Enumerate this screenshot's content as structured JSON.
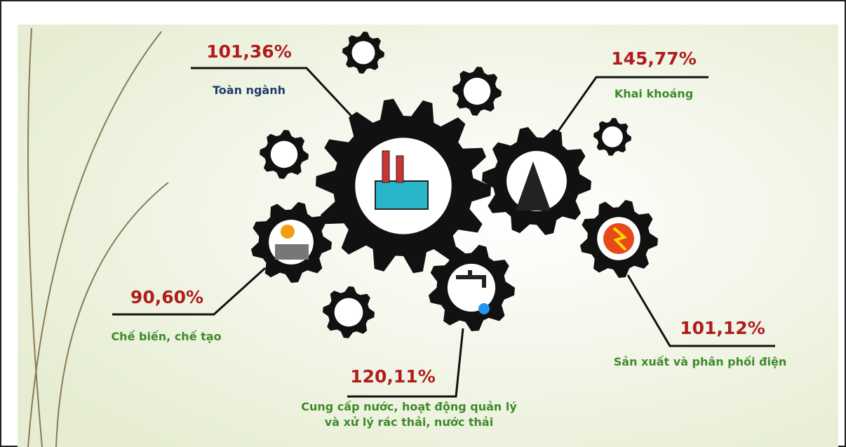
{
  "items": [
    {
      "value": "101,36%",
      "label": "Toàn ngành"
    },
    {
      "value": "145,77%",
      "label": "Khai khoáng"
    },
    {
      "value": "90,60%",
      "label": "Chế biến, chế tạo"
    },
    {
      "value": "101,12%",
      "label": "Sản xuất và phân phối điện"
    },
    {
      "value": "120,11%",
      "label_lines": [
        "Cung cấp nước, hoạt động quản lý",
        "và xử lý rác thải, nước thải"
      ]
    }
  ]
}
